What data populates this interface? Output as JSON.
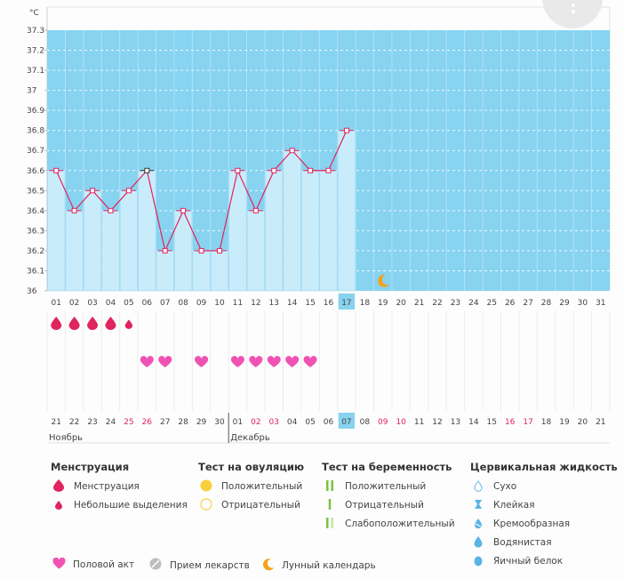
{
  "chart_data": {
    "type": "bar+line",
    "y_unit": "°C",
    "y_ticks": [
      "36",
      "36.1",
      "36.2",
      "36.3",
      "36.4",
      "36.5",
      "36.6",
      "36.7",
      "36.8",
      "36.9",
      "37",
      "37.1",
      "37.2",
      "37.3"
    ],
    "ylim": [
      36,
      37.3
    ],
    "cycle_days": [
      "01",
      "02",
      "03",
      "04",
      "05",
      "06",
      "07",
      "08",
      "09",
      "10",
      "11",
      "12",
      "13",
      "14",
      "15",
      "16",
      "17",
      "18",
      "19",
      "20",
      "21",
      "22",
      "23",
      "24",
      "25",
      "26",
      "27",
      "28",
      "29",
      "30",
      "31"
    ],
    "current_cycle_day": "17",
    "temperatures": [
      36.6,
      36.4,
      36.5,
      36.4,
      36.5,
      36.6,
      36.2,
      36.4,
      36.2,
      36.2,
      36.6,
      36.4,
      36.6,
      36.7,
      36.6,
      36.6,
      36.8
    ],
    "menstruation": {
      "full": [
        1,
        2,
        3,
        4
      ],
      "light": [
        5
      ]
    },
    "intercourse_days": [
      6,
      7,
      9,
      11,
      12,
      13,
      14,
      15
    ],
    "moon_day": 19,
    "calendar_dates": [
      "21",
      "22",
      "23",
      "24",
      "25",
      "26",
      "27",
      "28",
      "29",
      "30",
      "01",
      "02",
      "03",
      "04",
      "05",
      "06",
      "07",
      "08",
      "09",
      "10",
      "11",
      "12",
      "13",
      "14",
      "15",
      "16",
      "17",
      "18",
      "19",
      "20",
      "21"
    ],
    "calendar_red_dates": [
      5,
      6,
      12,
      13,
      19,
      20,
      26,
      27
    ],
    "today_index": 17,
    "month_labels": [
      {
        "label": "Ноябрь",
        "start_index": 1
      },
      {
        "label": "Декабрь",
        "start_index": 11
      }
    ]
  },
  "legend": {
    "menstruation": {
      "title": "Менструация",
      "items": [
        "Менструация",
        "Небольшие выделения"
      ]
    },
    "ovulation": {
      "title": "Тест на овуляцию",
      "items": [
        "Положительный",
        "Отрицательный"
      ]
    },
    "pregnancy": {
      "title": "Тест на беременность",
      "items": [
        "Положительный",
        "Отрицательный",
        "Слабоположительный"
      ]
    },
    "cervical": {
      "title": "Цервикальная жидкость",
      "items": [
        "Сухо",
        "Клейкая",
        "Кремообразная",
        "Водянистая",
        "Яичный белок"
      ]
    },
    "bottom": [
      "Половой акт",
      "Прием лекарств",
      "Лунный календарь"
    ]
  },
  "colors": {
    "sky": "#87d3f0",
    "bar": "#c9ecfb",
    "bar_edge": "#9fd8f2",
    "line": "#e0245e",
    "today": "#87d3f0",
    "red_date": "#e0245e",
    "moon": "#f5a21b",
    "ovul_pos": "#f9cf3b",
    "preg": "#7cc23c"
  }
}
